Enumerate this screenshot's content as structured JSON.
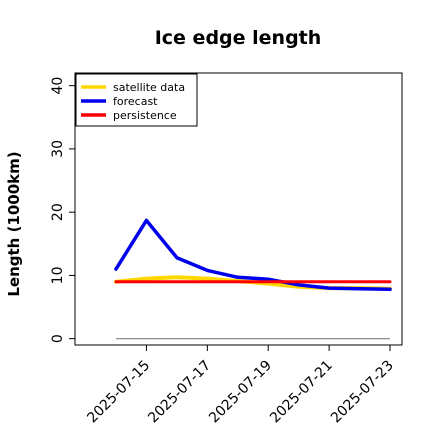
{
  "chart_data": {
    "type": "line",
    "title": "Ice edge length",
    "xlabel": "",
    "ylabel": "Length (1000km)",
    "ylim": [
      -1,
      42
    ],
    "yticks": [
      0,
      10,
      20,
      30,
      40
    ],
    "x": [
      "2025-07-14",
      "2025-07-15",
      "2025-07-16",
      "2025-07-17",
      "2025-07-18",
      "2025-07-19",
      "2025-07-20",
      "2025-07-21",
      "2025-07-22",
      "2025-07-23"
    ],
    "xtick_labels": [
      "2025-07-15",
      "2025-07-17",
      "2025-07-19",
      "2025-07-21",
      "2025-07-23"
    ],
    "highlighted_xtick": "2025-07-15",
    "highlight_color": "#2e8b2e",
    "series": [
      {
        "name": "satellite data",
        "color": "#ffd700",
        "values": [
          9.0,
          9.5,
          9.7,
          9.5,
          9.1,
          8.7,
          8.2,
          8.0,
          8.0,
          7.9
        ]
      },
      {
        "name": "forecast",
        "color": "#0000ee",
        "values": [
          11.0,
          18.7,
          12.8,
          10.8,
          9.7,
          9.4,
          8.5,
          8.0,
          7.9,
          7.8
        ]
      },
      {
        "name": "persistence",
        "color": "#ff0000",
        "values": [
          9.0,
          9.0,
          9.0,
          9.0,
          9.0,
          9.0,
          9.0,
          9.0,
          9.0,
          9.0
        ]
      }
    ],
    "reference_line": {
      "value": 0,
      "color": "#808080"
    },
    "grid": false,
    "legend_position": "top-left"
  }
}
